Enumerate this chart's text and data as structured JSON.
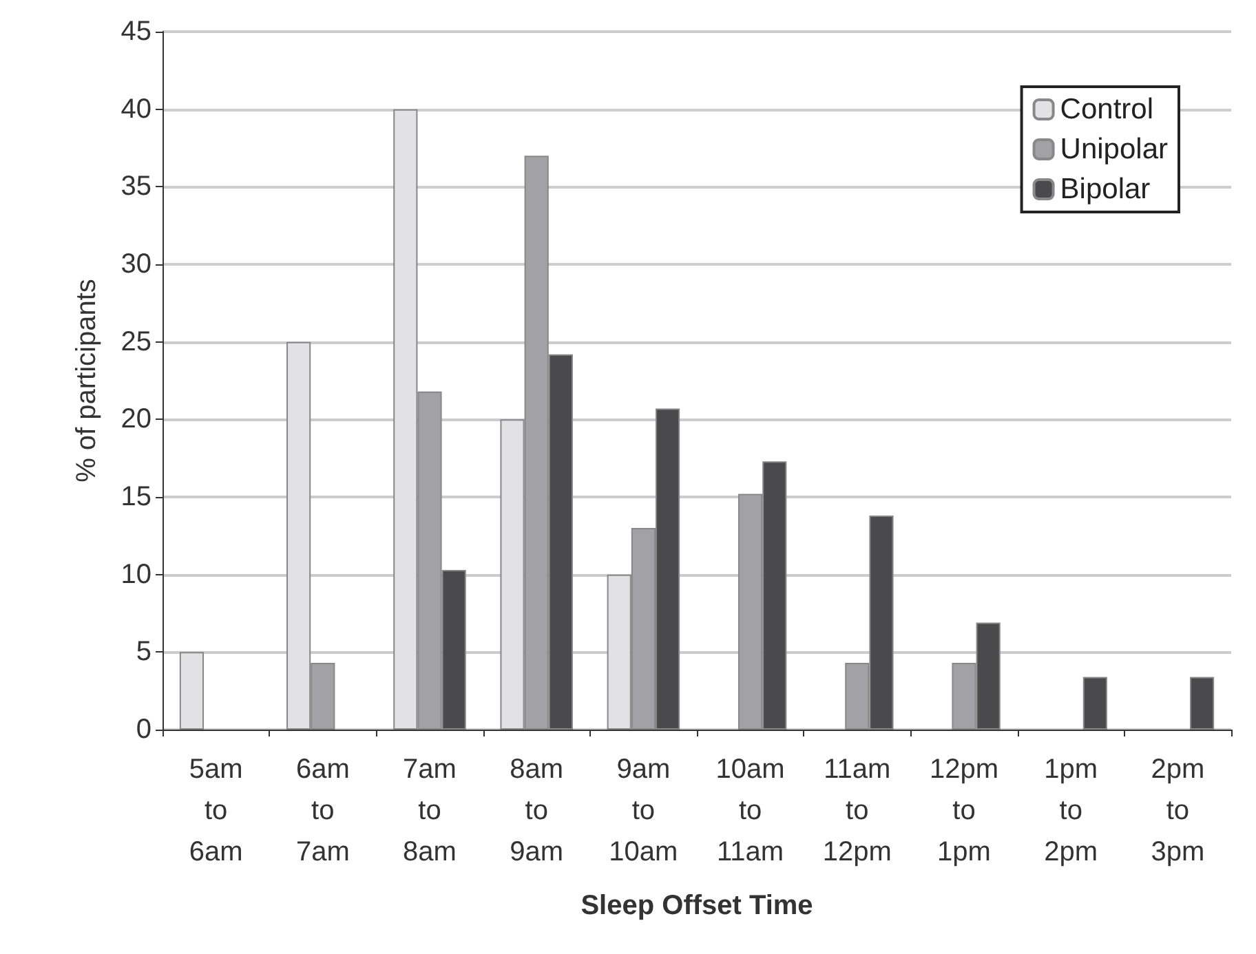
{
  "chart_data": {
    "type": "bar",
    "xlabel": "Sleep Offset Time",
    "ylabel": "% of participants",
    "categories": [
      "5am\nto\n6am",
      "6am\nto\n7am",
      "7am\nto\n8am",
      "8am\nto\n9am",
      "9am\nto\n10am",
      "10am\nto\n11am",
      "11am\nto\n12pm",
      "12pm\nto\n1pm",
      "1pm\nto\n2pm",
      "2pm\nto\n3pm"
    ],
    "series": [
      {
        "name": "Control",
        "color": "#e2e2e4",
        "values": [
          5,
          25,
          40,
          20,
          10,
          0,
          0,
          0,
          0,
          0
        ]
      },
      {
        "name": "Unipolar",
        "color": "#a2a2a6",
        "values": [
          0,
          4.3,
          21.8,
          37,
          13,
          15.2,
          4.3,
          4.3,
          0,
          0
        ]
      },
      {
        "name": "Bipolar",
        "color": "#4a4a4c",
        "values": [
          0,
          0,
          10.3,
          24.2,
          20.7,
          17.3,
          13.8,
          6.9,
          3.4,
          3.4
        ]
      }
    ],
    "ylim": [
      0,
      45
    ],
    "yticks": [
      0,
      5,
      10,
      15,
      20,
      25,
      30,
      35,
      40,
      45
    ],
    "grid": "y",
    "legend": "top right"
  }
}
